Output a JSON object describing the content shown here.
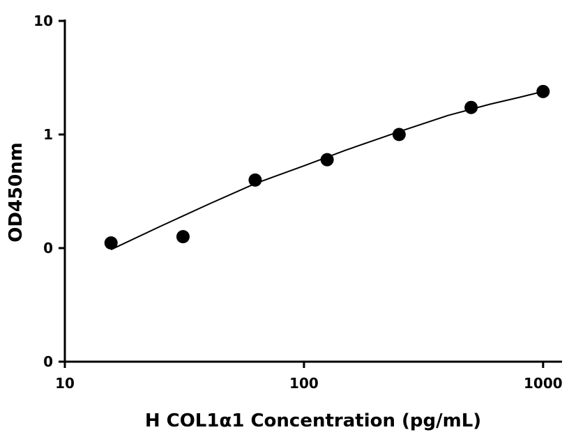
{
  "chart_data": {
    "type": "scatter",
    "xlabel": "H COL1α1 Concentration (pg/mL)",
    "ylabel": "OD450nm",
    "xscale": "log",
    "yscale": "log",
    "xlim": [
      10,
      1200
    ],
    "ylim": [
      0.01,
      10
    ],
    "x_ticks": [
      {
        "value": 10,
        "label": "10"
      },
      {
        "value": 100,
        "label": "100"
      },
      {
        "value": 1000,
        "label": "1000"
      }
    ],
    "y_ticks": [
      {
        "value": 0.01,
        "label": "0"
      },
      {
        "value": 0.1,
        "label": "0"
      },
      {
        "value": 1,
        "label": "1"
      },
      {
        "value": 10,
        "label": "10"
      }
    ],
    "grid": false,
    "legend": "none",
    "marker_color": "#000000",
    "series": [
      {
        "points": [
          {
            "x": 15.6,
            "y": 0.111
          },
          {
            "x": 31.2,
            "y": 0.126
          },
          {
            "x": 62.5,
            "y": 0.397
          },
          {
            "x": 125,
            "y": 0.6
          },
          {
            "x": 250,
            "y": 1.0
          },
          {
            "x": 500,
            "y": 1.73
          },
          {
            "x": 1000,
            "y": 2.39
          }
        ]
      }
    ],
    "fit_curve": [
      {
        "x": 15.6,
        "y": 0.097
      },
      {
        "x": 25,
        "y": 0.155
      },
      {
        "x": 40,
        "y": 0.244
      },
      {
        "x": 62.5,
        "y": 0.37
      },
      {
        "x": 100,
        "y": 0.53
      },
      {
        "x": 150,
        "y": 0.73
      },
      {
        "x": 250,
        "y": 1.06
      },
      {
        "x": 400,
        "y": 1.47
      },
      {
        "x": 600,
        "y": 1.85
      },
      {
        "x": 800,
        "y": 2.13
      },
      {
        "x": 1000,
        "y": 2.39
      }
    ]
  }
}
